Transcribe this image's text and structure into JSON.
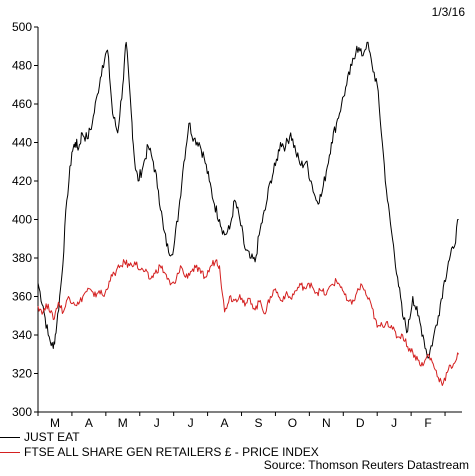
{
  "date_label": "1/3/16",
  "source": "Source: Thomson Reuters Datastream",
  "chart_data": {
    "type": "line",
    "title": "",
    "xlabel": "",
    "ylabel": "",
    "ylim": [
      300,
      500
    ],
    "yticks": [
      300,
      320,
      340,
      360,
      380,
      400,
      420,
      440,
      460,
      480,
      500
    ],
    "month_labels": [
      "M",
      "A",
      "M",
      "J",
      "J",
      "A",
      "S",
      "O",
      "N",
      "D",
      "J",
      "F"
    ],
    "x_range": [
      0,
      12.5
    ],
    "grid": false,
    "legend_position": "bottom-left",
    "series": [
      {
        "name": "JUST EAT",
        "color": "#000000",
        "x": [
          0,
          0.15,
          0.3,
          0.45,
          0.55,
          0.7,
          0.85,
          1.0,
          1.1,
          1.2,
          1.3,
          1.45,
          1.6,
          1.75,
          1.9,
          2.05,
          2.2,
          2.35,
          2.5,
          2.6,
          2.75,
          2.85,
          2.95,
          3.1,
          3.25,
          3.4,
          3.55,
          3.7,
          3.85,
          4.0,
          4.15,
          4.3,
          4.45,
          4.6,
          4.75,
          4.9,
          5.05,
          5.2,
          5.35,
          5.5,
          5.65,
          5.8,
          5.95,
          6.1,
          6.25,
          6.4,
          6.55,
          6.7,
          6.85,
          7.0,
          7.15,
          7.3,
          7.45,
          7.6,
          7.75,
          7.9,
          8.05,
          8.2,
          8.35,
          8.5,
          8.65,
          8.8,
          8.95,
          9.1,
          9.25,
          9.4,
          9.55,
          9.7,
          9.85,
          10.0,
          10.15,
          10.3,
          10.45,
          10.6,
          10.75,
          10.9,
          11.05,
          11.2,
          11.35,
          11.5,
          11.65,
          11.8,
          11.95,
          12.1,
          12.25,
          12.4
        ],
        "values": [
          367,
          355,
          340,
          333,
          345,
          370,
          410,
          435,
          440,
          437,
          445,
          442,
          450,
          465,
          480,
          488,
          455,
          445,
          470,
          492,
          455,
          430,
          420,
          428,
          438,
          430,
          415,
          395,
          383,
          385,
          405,
          430,
          450,
          442,
          440,
          432,
          420,
          408,
          400,
          392,
          395,
          410,
          400,
          385,
          380,
          378,
          395,
          405,
          420,
          428,
          440,
          438,
          445,
          435,
          428,
          430,
          420,
          410,
          412,
          425,
          440,
          450,
          460,
          470,
          480,
          490,
          485,
          492,
          480,
          470,
          440,
          410,
          390,
          370,
          350,
          342,
          360,
          350,
          340,
          328,
          338,
          350,
          365,
          378,
          385,
          400
        ]
      },
      {
        "name": "FTSE ALL SHARE GEN RETAILERS £ - PRICE INDEX",
        "color": "#d42020",
        "x": [
          0,
          0.15,
          0.3,
          0.45,
          0.6,
          0.75,
          0.9,
          1.05,
          1.2,
          1.35,
          1.5,
          1.65,
          1.8,
          1.95,
          2.1,
          2.25,
          2.4,
          2.55,
          2.7,
          2.85,
          3.0,
          3.15,
          3.3,
          3.45,
          3.6,
          3.75,
          3.9,
          4.05,
          4.2,
          4.35,
          4.5,
          4.65,
          4.8,
          4.95,
          5.1,
          5.25,
          5.35,
          5.5,
          5.65,
          5.8,
          5.95,
          6.1,
          6.25,
          6.4,
          6.55,
          6.7,
          6.85,
          7.0,
          7.15,
          7.3,
          7.45,
          7.6,
          7.75,
          7.9,
          8.05,
          8.2,
          8.35,
          8.5,
          8.65,
          8.8,
          8.95,
          9.1,
          9.25,
          9.4,
          9.55,
          9.7,
          9.85,
          10.0,
          10.15,
          10.3,
          10.45,
          10.6,
          10.75,
          10.9,
          11.05,
          11.2,
          11.35,
          11.5,
          11.65,
          11.8,
          11.95,
          12.1,
          12.25,
          12.4
        ],
        "values": [
          355,
          352,
          356,
          348,
          357,
          352,
          360,
          357,
          356,
          361,
          364,
          360,
          363,
          360,
          368,
          372,
          375,
          378,
          376,
          378,
          374,
          373,
          369,
          372,
          376,
          372,
          366,
          367,
          376,
          370,
          373,
          375,
          372,
          370,
          376,
          379,
          376,
          352,
          360,
          358,
          361,
          355,
          359,
          353,
          358,
          351,
          360,
          364,
          358,
          361,
          359,
          363,
          366,
          364,
          367,
          362,
          363,
          361,
          366,
          368,
          365,
          358,
          356,
          362,
          366,
          360,
          354,
          344,
          345,
          347,
          343,
          339,
          340,
          334,
          331,
          327,
          324,
          330,
          325,
          318,
          315,
          322,
          325,
          330
        ]
      }
    ]
  },
  "legend": [
    {
      "label": "JUST EAT",
      "color": "#000000"
    },
    {
      "label": "FTSE ALL SHARE GEN RETAILERS £ - PRICE INDEX",
      "color": "#d42020"
    }
  ]
}
